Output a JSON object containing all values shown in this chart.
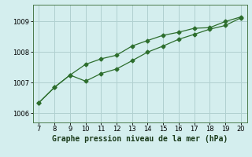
{
  "xlabel": "Graphe pression niveau de la mer (hPa)",
  "line1_x": [
    7,
    8,
    9,
    10,
    11,
    12,
    13,
    14,
    15,
    16,
    17,
    18,
    19,
    20
  ],
  "line1_y": [
    1006.35,
    1006.85,
    1007.25,
    1007.6,
    1007.78,
    1007.9,
    1008.2,
    1008.38,
    1008.55,
    1008.65,
    1008.78,
    1008.8,
    1009.0,
    1009.15
  ],
  "line2_x": [
    7,
    8,
    9,
    10,
    11,
    12,
    13,
    14,
    15,
    16,
    17,
    18,
    19,
    20
  ],
  "line2_y": [
    1006.35,
    1006.85,
    1007.25,
    1007.05,
    1007.3,
    1007.45,
    1007.72,
    1008.0,
    1008.2,
    1008.42,
    1008.58,
    1008.75,
    1008.87,
    1009.12
  ],
  "line_color": "#2d6e2d",
  "bg_color": "#d4eeee",
  "grid_color": "#b0d0d0",
  "xlabel_fontsize": 7,
  "xticks": [
    7,
    8,
    9,
    10,
    11,
    12,
    13,
    14,
    15,
    16,
    17,
    18,
    19,
    20
  ],
  "yticks": [
    1006,
    1007,
    1008,
    1009
  ],
  "xlim": [
    6.6,
    20.4
  ],
  "ylim": [
    1005.7,
    1009.55
  ]
}
